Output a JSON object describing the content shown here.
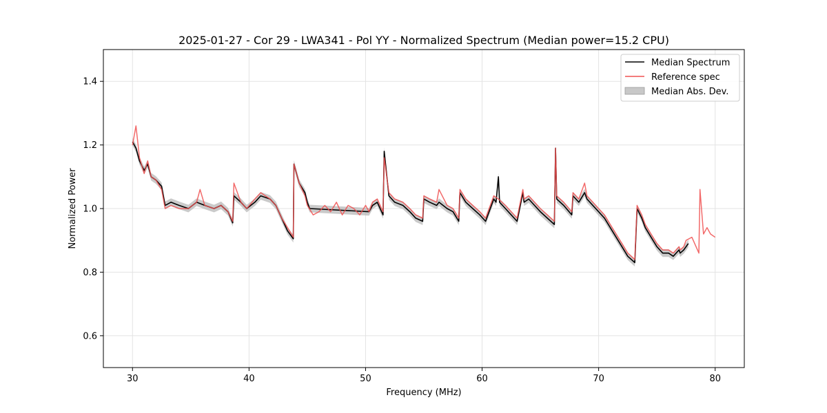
{
  "chart_data": {
    "type": "line",
    "title": "2025-01-27 - Cor 29 - LWA341 - Pol YY - Normalized Spectrum (Median power=15.2 CPU)",
    "xlabel": "Frequency (MHz)",
    "ylabel": "Normalized Power",
    "xlim": [
      27.5,
      82.5
    ],
    "ylim": [
      0.5,
      1.5
    ],
    "xticks": [
      30,
      40,
      50,
      60,
      70,
      80
    ],
    "yticks": [
      0.6,
      0.8,
      1.0,
      1.2,
      1.4
    ],
    "xtick_labels": [
      "30",
      "40",
      "50",
      "60",
      "70",
      "80"
    ],
    "ytick_labels": [
      "0.6",
      "0.8",
      "1.0",
      "1.2",
      "1.4"
    ],
    "grid": true,
    "legend_position": "top-right",
    "colors": {
      "median": "#000000",
      "reference": "#f05050",
      "mad": "#b8b8b8"
    },
    "series": [
      {
        "name": "Median Spectrum",
        "kind": "line",
        "color": "#000000",
        "x": [
          30.0,
          30.3,
          30.6,
          31.0,
          31.3,
          31.6,
          32.0,
          32.5,
          32.8,
          33.3,
          34.0,
          34.8,
          35.5,
          36.2,
          37.0,
          37.6,
          38.2,
          38.6,
          38.7,
          39.3,
          39.8,
          40.5,
          41.0,
          41.8,
          42.3,
          42.8,
          43.3,
          43.8,
          43.85,
          44.3,
          44.8,
          45.0,
          45.2,
          50.3,
          50.6,
          51.0,
          51.5,
          51.6,
          52.0,
          52.5,
          53.2,
          53.8,
          54.3,
          54.9,
          55.0,
          55.5,
          56.1,
          56.3,
          57.0,
          57.5,
          58.0,
          58.1,
          58.6,
          59.2,
          59.8,
          60.3,
          61.0,
          61.2,
          61.4,
          61.5,
          62.0,
          62.5,
          63.0,
          63.5,
          63.6,
          64.0,
          64.5,
          65.0,
          65.6,
          66.2,
          66.3,
          66.4,
          67.0,
          67.7,
          67.8,
          68.3,
          68.8,
          69.0,
          69.5,
          70.0,
          70.5,
          71.0,
          71.5,
          72.0,
          72.5,
          73.1,
          73.3,
          73.7,
          74.0,
          74.5,
          75.0,
          75.5,
          76.0,
          76.4,
          76.9,
          77.0,
          77.3,
          77.5,
          77.7
        ],
        "y": [
          1.21,
          1.19,
          1.15,
          1.12,
          1.14,
          1.1,
          1.09,
          1.07,
          1.01,
          1.02,
          1.01,
          1.0,
          1.02,
          1.01,
          1.0,
          1.01,
          0.99,
          0.955,
          1.04,
          1.02,
          1.0,
          1.02,
          1.04,
          1.03,
          1.01,
          0.97,
          0.93,
          0.905,
          1.14,
          1.08,
          1.05,
          1.02,
          1.0,
          0.99,
          1.01,
          1.02,
          0.98,
          1.18,
          1.04,
          1.02,
          1.01,
          0.99,
          0.97,
          0.96,
          1.03,
          1.02,
          1.01,
          1.02,
          1.0,
          0.99,
          0.96,
          1.05,
          1.02,
          1.0,
          0.98,
          0.96,
          1.03,
          1.02,
          1.1,
          1.02,
          1.0,
          0.98,
          0.96,
          1.05,
          1.02,
          1.03,
          1.01,
          0.99,
          0.97,
          0.95,
          1.19,
          1.03,
          1.01,
          0.98,
          1.04,
          1.02,
          1.05,
          1.03,
          1.01,
          0.99,
          0.97,
          0.94,
          0.91,
          0.88,
          0.85,
          0.83,
          1.0,
          0.97,
          0.94,
          0.91,
          0.88,
          0.86,
          0.86,
          0.85,
          0.87,
          0.86,
          0.87,
          0.88,
          0.89
        ]
      },
      {
        "name": "Reference spec",
        "kind": "line",
        "color": "#f05050",
        "x": [
          30.0,
          30.3,
          30.6,
          31.0,
          31.3,
          31.6,
          32.0,
          32.5,
          32.8,
          33.3,
          34.0,
          34.8,
          35.5,
          35.8,
          36.2,
          37.0,
          37.6,
          38.2,
          38.6,
          38.7,
          39.3,
          39.8,
          40.5,
          41.0,
          41.8,
          42.3,
          42.8,
          43.3,
          43.8,
          43.85,
          44.3,
          44.8,
          45.0,
          45.5,
          46.0,
          46.5,
          47.0,
          47.5,
          48.0,
          48.5,
          49.0,
          49.5,
          50.0,
          50.3,
          50.6,
          51.0,
          51.5,
          51.6,
          52.0,
          52.5,
          53.2,
          53.8,
          54.3,
          54.9,
          55.0,
          55.5,
          56.1,
          56.3,
          57.0,
          57.5,
          58.0,
          58.1,
          58.6,
          59.2,
          59.8,
          60.3,
          61.0,
          61.4,
          62.0,
          62.5,
          63.0,
          63.5,
          63.6,
          64.0,
          64.5,
          65.0,
          65.6,
          66.2,
          66.3,
          66.4,
          67.0,
          67.7,
          67.8,
          68.3,
          68.8,
          69.0,
          69.5,
          70.0,
          70.5,
          71.0,
          71.5,
          72.0,
          72.5,
          73.1,
          73.3,
          73.7,
          74.0,
          74.5,
          75.0,
          75.5,
          76.0,
          76.4,
          76.9,
          77.0,
          77.3,
          77.5,
          78.0,
          78.6,
          78.7,
          79.0,
          79.3,
          79.6,
          80.0
        ],
        "y": [
          1.2,
          1.26,
          1.16,
          1.11,
          1.15,
          1.1,
          1.09,
          1.06,
          1.0,
          1.01,
          1.0,
          1.0,
          1.02,
          1.06,
          1.01,
          1.0,
          1.01,
          0.99,
          0.96,
          1.08,
          1.02,
          1.0,
          1.03,
          1.05,
          1.03,
          1.01,
          0.97,
          0.94,
          0.91,
          1.14,
          1.08,
          1.04,
          1.01,
          0.98,
          0.99,
          1.01,
          0.99,
          1.02,
          0.98,
          1.01,
          1.0,
          0.98,
          1.01,
          0.99,
          1.02,
          1.03,
          0.99,
          1.16,
          1.05,
          1.03,
          1.02,
          1.0,
          0.98,
          0.97,
          1.04,
          1.03,
          1.02,
          1.06,
          1.01,
          1.0,
          0.97,
          1.06,
          1.03,
          1.01,
          0.99,
          0.97,
          1.04,
          1.03,
          1.01,
          0.99,
          0.97,
          1.06,
          1.03,
          1.04,
          1.02,
          1.0,
          0.98,
          0.96,
          1.19,
          1.04,
          1.02,
          0.99,
          1.05,
          1.03,
          1.08,
          1.04,
          1.02,
          1.0,
          0.98,
          0.95,
          0.92,
          0.89,
          0.86,
          0.84,
          1.01,
          0.98,
          0.95,
          0.92,
          0.89,
          0.87,
          0.87,
          0.86,
          0.88,
          0.87,
          0.88,
          0.9,
          0.91,
          0.86,
          1.06,
          0.92,
          0.94,
          0.92,
          0.91
        ]
      },
      {
        "name": "Median Abs. Dev.",
        "kind": "band",
        "color": "#b8b8b8",
        "width": 0.012
      }
    ],
    "legend": [
      "Median Spectrum",
      "Reference spec",
      "Median Abs. Dev."
    ]
  }
}
